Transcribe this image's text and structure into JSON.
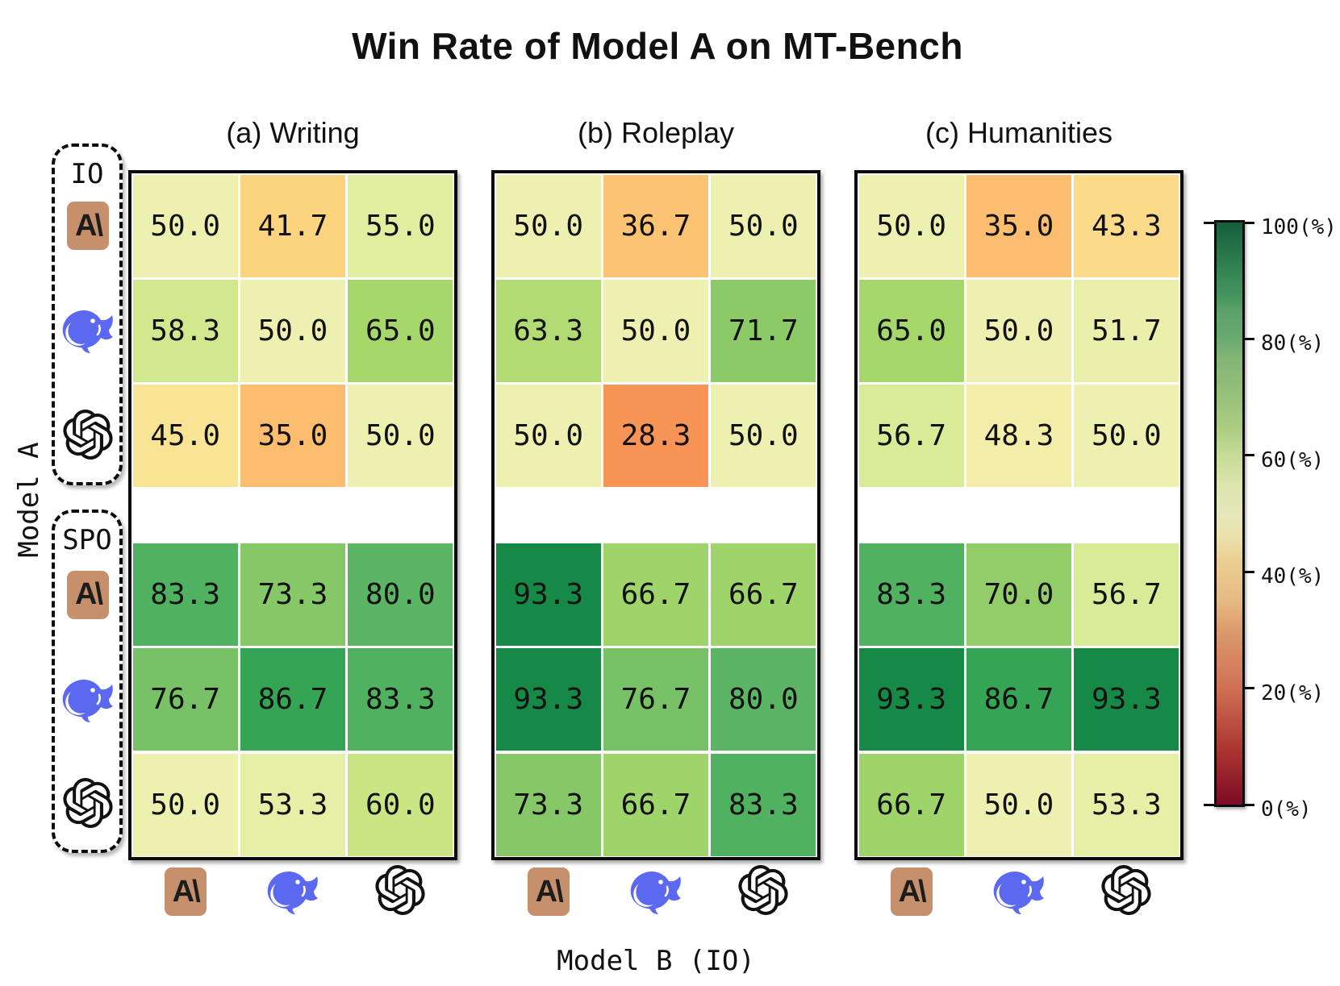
{
  "chart_data": {
    "type": "heatmap",
    "title": "Win Rate of Model A on MT-Bench",
    "xlabel": "Model B (IO)",
    "ylabel": "Model A",
    "col_models": [
      "Anthropic",
      "DeepSeek",
      "OpenAI"
    ],
    "row_groups": [
      {
        "label": "IO",
        "models": [
          "Anthropic",
          "DeepSeek",
          "OpenAI"
        ]
      },
      {
        "label": "SPO",
        "models": [
          "Anthropic",
          "DeepSeek",
          "OpenAI"
        ]
      }
    ],
    "panels": [
      {
        "id": "a",
        "title": "(a) Writing",
        "values": [
          [
            50.0,
            41.7,
            55.0
          ],
          [
            58.3,
            50.0,
            65.0
          ],
          [
            45.0,
            35.0,
            50.0
          ],
          [
            83.3,
            73.3,
            80.0
          ],
          [
            76.7,
            86.7,
            83.3
          ],
          [
            50.0,
            53.3,
            60.0
          ]
        ]
      },
      {
        "id": "b",
        "title": "(b) Roleplay",
        "values": [
          [
            50.0,
            36.7,
            50.0
          ],
          [
            63.3,
            50.0,
            71.7
          ],
          [
            50.0,
            28.3,
            50.0
          ],
          [
            93.3,
            66.7,
            66.7
          ],
          [
            93.3,
            76.7,
            80.0
          ],
          [
            73.3,
            66.7,
            83.3
          ]
        ]
      },
      {
        "id": "c",
        "title": "(c) Humanities",
        "values": [
          [
            50.0,
            35.0,
            43.3
          ],
          [
            65.0,
            50.0,
            51.7
          ],
          [
            56.7,
            48.3,
            50.0
          ],
          [
            83.3,
            70.0,
            56.7
          ],
          [
            93.3,
            86.7,
            93.3
          ],
          [
            66.7,
            50.0,
            53.3
          ]
        ]
      }
    ],
    "colorbar": {
      "vmin": 0,
      "vmax": 100,
      "unit": "(%)",
      "ticks": [
        100,
        80,
        60,
        40,
        20,
        0
      ],
      "tick_labels": [
        "100(%)",
        "80(%)",
        "60(%)",
        "40(%)",
        "20(%)",
        "0(%)"
      ],
      "colormap": "RdYlGn"
    },
    "colormap_stops": [
      [
        0.0,
        165,
        0,
        38
      ],
      [
        0.1,
        215,
        48,
        39
      ],
      [
        0.2,
        244,
        109,
        67
      ],
      [
        0.3,
        248,
        156,
        90
      ],
      [
        0.35,
        252,
        189,
        110
      ],
      [
        0.42,
        252,
        212,
        127
      ],
      [
        0.46,
        248,
        233,
        157
      ],
      [
        0.5,
        238,
        240,
        176
      ],
      [
        0.55,
        225,
        238,
        160
      ],
      [
        0.6,
        202,
        229,
        132
      ],
      [
        0.65,
        166,
        215,
        106
      ],
      [
        0.72,
        139,
        201,
        104
      ],
      [
        0.77,
        120,
        193,
        102
      ],
      [
        0.8,
        91,
        181,
        100
      ],
      [
        0.847,
        76,
        175,
        95
      ],
      [
        0.867,
        53,
        164,
        85
      ],
      [
        0.9,
        35,
        153,
        79
      ],
      [
        1.0,
        0,
        104,
        55
      ]
    ],
    "legend_position": "right",
    "grid": false
  },
  "brand_colors": {
    "anthropic_bg": "#C6906C",
    "anthropic_glyph": "#1d1d1b",
    "deepseek_blue": "#5B68F0",
    "openai_black": "#111111"
  },
  "icon_labels": {
    "anthropic_glyph_text": "A\\"
  }
}
